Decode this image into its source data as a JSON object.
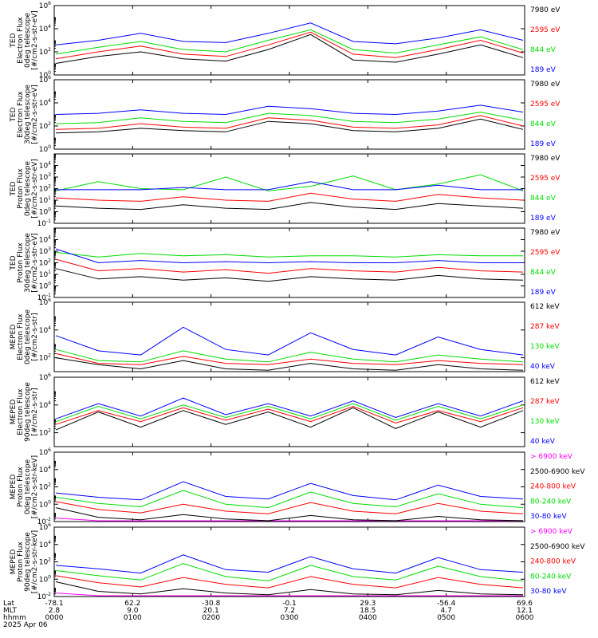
{
  "chart_data": [
    {
      "type": "line",
      "ylabel": [
        "TED",
        "Electron Flux",
        "0deg telescope",
        "[#/cm2-s-str-eV]"
      ],
      "yscale": "log",
      "ylim": [
        1,
        1000000
      ],
      "yticks": [
        {
          "label": "10",
          "exp": "0"
        },
        {
          "label": "10",
          "exp": "2"
        },
        {
          "label": "10",
          "exp": "4"
        },
        {
          "label": "10",
          "exp": "6"
        }
      ],
      "series": [
        {
          "name": "7980 eV",
          "color": "#000000",
          "values": [
            1.0,
            1.6,
            2.0,
            1.4,
            1.2,
            2.2,
            3.5,
            1.3,
            1.1,
            1.8,
            2.6,
            1.5
          ]
        },
        {
          "name": "2595 eV",
          "color": "#ff0000",
          "values": [
            1.4,
            2.0,
            2.5,
            1.8,
            1.6,
            2.6,
            3.7,
            1.8,
            1.5,
            2.2,
            3.0,
            1.9
          ]
        },
        {
          "name": "844 eV",
          "color": "#00dd00",
          "values": [
            1.8,
            2.4,
            2.9,
            2.2,
            2.0,
            3.0,
            3.9,
            2.2,
            1.9,
            2.6,
            3.3,
            2.2
          ]
        },
        {
          "name": "189 eV",
          "color": "#0000ff",
          "values": [
            2.6,
            3.0,
            3.6,
            2.9,
            2.8,
            3.6,
            4.5,
            2.9,
            2.7,
            3.2,
            3.9,
            3.0
          ]
        }
      ]
    },
    {
      "type": "line",
      "ylabel": [
        "TED",
        "Electron Flux",
        "30deg telescope",
        "[#/cm2-s-str-eV]"
      ],
      "yscale": "log",
      "ylim": [
        1,
        1000000
      ],
      "yticks": [
        {
          "label": "10",
          "exp": "0"
        },
        {
          "label": "10",
          "exp": "2"
        },
        {
          "label": "10",
          "exp": "4"
        },
        {
          "label": "10",
          "exp": "6"
        }
      ],
      "series": [
        {
          "name": "7980 eV",
          "color": "#000000",
          "values": [
            1.4,
            1.5,
            1.8,
            1.6,
            1.5,
            2.4,
            2.2,
            1.6,
            1.5,
            1.8,
            2.6,
            1.7
          ]
        },
        {
          "name": "2595 eV",
          "color": "#ff0000",
          "values": [
            1.7,
            1.8,
            2.2,
            1.9,
            1.8,
            2.7,
            2.5,
            1.9,
            1.8,
            2.1,
            2.9,
            2.0
          ]
        },
        {
          "name": "844 eV",
          "color": "#00dd00",
          "values": [
            2.2,
            2.3,
            2.7,
            2.4,
            2.3,
            3.1,
            2.9,
            2.4,
            2.3,
            2.6,
            3.2,
            2.5
          ]
        },
        {
          "name": "189 eV",
          "color": "#0000ff",
          "values": [
            3.0,
            3.1,
            3.4,
            3.1,
            3.0,
            3.7,
            3.5,
            3.1,
            3.0,
            3.3,
            3.8,
            3.2
          ]
        }
      ]
    },
    {
      "type": "line",
      "ylabel": [
        "TED",
        "Proton Flux",
        "0deg telescope",
        "[#/cm2-s-str-eV]"
      ],
      "yscale": "log",
      "ylim": [
        0.1,
        100000
      ],
      "yticks": [
        {
          "label": "10",
          "exp": "-1"
        },
        {
          "label": "10",
          "exp": "0"
        },
        {
          "label": "10",
          "exp": "1"
        },
        {
          "label": "10",
          "exp": "2"
        },
        {
          "label": "10",
          "exp": "3"
        },
        {
          "label": "10",
          "exp": "4"
        }
      ],
      "series": [
        {
          "name": "7980 eV",
          "color": "#000000",
          "values": [
            0.5,
            0.3,
            0.2,
            0.6,
            0.3,
            0.2,
            0.8,
            0.4,
            0.2,
            0.7,
            0.5,
            0.3
          ]
        },
        {
          "name": "2595 eV",
          "color": "#ff0000",
          "values": [
            1.2,
            1.0,
            0.9,
            1.3,
            1.0,
            0.9,
            1.6,
            1.1,
            0.9,
            1.5,
            1.2,
            1.0
          ]
        },
        {
          "name": "844 eV",
          "color": "#00dd00",
          "values": [
            1.8,
            2.6,
            2.0,
            1.9,
            3.0,
            1.8,
            2.2,
            3.1,
            1.9,
            2.4,
            3.2,
            1.8
          ]
        },
        {
          "name": "189 eV",
          "color": "#0000ff",
          "values": [
            1.9,
            1.9,
            1.9,
            2.1,
            1.9,
            1.9,
            2.6,
            1.9,
            1.9,
            2.3,
            1.9,
            1.9
          ]
        }
      ]
    },
    {
      "type": "line",
      "ylabel": [
        "TED",
        "Proton Flux",
        "30deg telescope",
        "[#/cm2-s-str-eV]"
      ],
      "yscale": "log",
      "ylim": [
        0.1,
        100000
      ],
      "yticks": [
        {
          "label": "10",
          "exp": "-1"
        },
        {
          "label": "10",
          "exp": "0"
        },
        {
          "label": "10",
          "exp": "1"
        },
        {
          "label": "10",
          "exp": "2"
        },
        {
          "label": "10",
          "exp": "3"
        },
        {
          "label": "10",
          "exp": "4"
        }
      ],
      "series": [
        {
          "name": "7980 eV",
          "color": "#000000",
          "values": [
            1.5,
            0.6,
            0.8,
            0.5,
            0.7,
            0.4,
            0.8,
            0.6,
            0.5,
            0.9,
            0.6,
            0.5
          ]
        },
        {
          "name": "2595 eV",
          "color": "#ff0000",
          "values": [
            2.3,
            1.3,
            1.5,
            1.2,
            1.4,
            1.1,
            1.5,
            1.3,
            1.2,
            1.6,
            1.3,
            1.2
          ]
        },
        {
          "name": "844 eV",
          "color": "#00dd00",
          "values": [
            2.9,
            2.5,
            2.8,
            2.6,
            2.7,
            2.5,
            2.6,
            2.6,
            2.5,
            2.7,
            2.6,
            2.6
          ]
        },
        {
          "name": "189 eV",
          "color": "#0000ff",
          "values": [
            3.2,
            2.0,
            2.2,
            2.0,
            2.1,
            2.0,
            2.1,
            2.0,
            2.0,
            2.2,
            2.0,
            2.0
          ]
        }
      ]
    },
    {
      "type": "line",
      "ylabel": [
        "MEPED",
        "Electron Flux",
        "0deg telescope",
        "[#/cm2-s-str]"
      ],
      "yscale": "log",
      "ylim": [
        10,
        1000000
      ],
      "yticks": [
        {
          "label": "10",
          "exp": "2"
        },
        {
          "label": "10",
          "exp": "4"
        },
        {
          "label": "10",
          "exp": "6"
        }
      ],
      "series": [
        {
          "name": "612 keV",
          "color": "#000000",
          "values": [
            2.0,
            1.5,
            1.2,
            1.8,
            1.2,
            1.1,
            1.6,
            1.2,
            1.1,
            1.5,
            1.2,
            1.1
          ]
        },
        {
          "name": "287 keV",
          "color": "#ff0000",
          "values": [
            2.3,
            1.6,
            1.5,
            2.1,
            1.6,
            1.5,
            1.9,
            1.6,
            1.5,
            1.8,
            1.6,
            1.5
          ]
        },
        {
          "name": "130 keV",
          "color": "#00dd00",
          "values": [
            2.6,
            1.8,
            1.7,
            2.5,
            1.9,
            1.7,
            2.4,
            1.9,
            1.7,
            2.2,
            1.9,
            1.7
          ]
        },
        {
          "name": "40 keV",
          "color": "#0000ff",
          "values": [
            3.6,
            2.5,
            2.2,
            4.2,
            2.6,
            2.2,
            3.8,
            2.6,
            2.2,
            3.5,
            2.6,
            2.2
          ]
        }
      ]
    },
    {
      "type": "line",
      "ylabel": [
        "MEPED",
        "Electron Flux",
        "90deg telescope",
        "[#/cm2-s-str]"
      ],
      "yscale": "log",
      "ylim": [
        10,
        1000000
      ],
      "yticks": [
        {
          "label": "10",
          "exp": "2"
        },
        {
          "label": "10",
          "exp": "4"
        },
        {
          "label": "10",
          "exp": "6"
        }
      ],
      "series": [
        {
          "name": "612 keV",
          "color": "#000000",
          "values": [
            2.2,
            3.5,
            2.4,
            3.6,
            2.6,
            3.5,
            2.4,
            3.8,
            2.3,
            3.5,
            2.4,
            3.6
          ]
        },
        {
          "name": "287 keV",
          "color": "#ff0000",
          "values": [
            2.6,
            3.6,
            2.8,
            3.8,
            2.9,
            3.7,
            2.8,
            3.9,
            2.7,
            3.6,
            2.8,
            3.8
          ]
        },
        {
          "name": "130 keV",
          "color": "#00dd00",
          "values": [
            2.8,
            3.9,
            3.0,
            4.0,
            3.1,
            3.9,
            3.0,
            4.1,
            2.9,
            3.9,
            3.0,
            4.0
          ]
        },
        {
          "name": "40 keV",
          "color": "#0000ff",
          "values": [
            3.0,
            4.1,
            3.2,
            4.5,
            3.3,
            4.1,
            3.2,
            4.3,
            3.1,
            4.1,
            3.2,
            4.3
          ]
        }
      ]
    },
    {
      "type": "line",
      "ylabel": [
        "MEPED",
        "Proton Flux",
        "0deg telescope",
        "[#/cm2-s-str-keV]"
      ],
      "yscale": "log",
      "ylim": [
        0.01,
        1000000
      ],
      "yticks": [
        {
          "label": "10",
          "exp": "-2"
        },
        {
          "label": "10",
          "exp": "0"
        },
        {
          "label": "10",
          "exp": "2"
        },
        {
          "label": "10",
          "exp": "4"
        },
        {
          "label": "10",
          "exp": "6"
        }
      ],
      "series": [
        {
          "name": "> 6900 keV",
          "color": "#ff00ff",
          "values": [
            -1.6,
            -2,
            -2,
            -2,
            -2,
            -2,
            -2,
            -2,
            -2,
            -2,
            -2,
            -2
          ]
        },
        {
          "name": "2500-6900 keV",
          "color": "#000000",
          "values": [
            -0.4,
            -1.5,
            -1.8,
            -1.2,
            -1.7,
            -1.9,
            -1.3,
            -1.8,
            -1.9,
            -1.4,
            -1.8,
            -1.9
          ]
        },
        {
          "name": "240-800 keV",
          "color": "#ff0000",
          "values": [
            0.3,
            -0.6,
            -1.0,
            0.0,
            -0.8,
            -1.1,
            0.2,
            -0.8,
            -1.1,
            0.1,
            -0.8,
            -1.1
          ]
        },
        {
          "name": "80-240 keV",
          "color": "#00dd00",
          "values": [
            0.8,
            0.1,
            -0.3,
            1.6,
            0.0,
            -0.4,
            1.4,
            0.1,
            -0.3,
            1.2,
            0.0,
            -0.4
          ]
        },
        {
          "name": "30-80 keV",
          "color": "#0000ff",
          "values": [
            1.3,
            0.8,
            0.5,
            2.6,
            0.9,
            0.6,
            2.4,
            1.0,
            0.5,
            2.2,
            0.9,
            0.6
          ]
        }
      ]
    },
    {
      "type": "line",
      "ylabel": [
        "MEPED",
        "Proton Flux",
        "90deg telescope",
        "[#/cm2-s-str-keV]"
      ],
      "yscale": "log",
      "ylim": [
        0.01,
        1000000
      ],
      "yticks": [
        {
          "label": "10",
          "exp": "-2"
        },
        {
          "label": "10",
          "exp": "0"
        },
        {
          "label": "10",
          "exp": "2"
        },
        {
          "label": "10",
          "exp": "4"
        },
        {
          "label": "10",
          "exp": "6"
        }
      ],
      "series": [
        {
          "name": "> 6900 keV",
          "color": "#ff00ff",
          "values": [
            -1.6,
            -2,
            -2,
            -2,
            -2,
            -2,
            -2,
            -2,
            -2,
            -2,
            -2,
            -2
          ]
        },
        {
          "name": "2500-6900 keV",
          "color": "#000000",
          "values": [
            -0.3,
            -1.4,
            -1.7,
            -1.1,
            -1.6,
            -1.8,
            -1.2,
            -1.7,
            -1.8,
            -1.3,
            -1.7,
            -1.8
          ]
        },
        {
          "name": "240-800 keV",
          "color": "#ff0000",
          "values": [
            0.4,
            -0.4,
            -0.9,
            0.2,
            -0.6,
            -1.0,
            0.3,
            -0.6,
            -1.0,
            0.2,
            -0.6,
            -1.0
          ]
        },
        {
          "name": "80-240 keV",
          "color": "#00dd00",
          "values": [
            1.0,
            0.4,
            -0.1,
            1.8,
            0.3,
            -0.2,
            1.6,
            0.3,
            -0.1,
            1.5,
            0.3,
            -0.2
          ]
        },
        {
          "name": "30-80 keV",
          "color": "#0000ff",
          "values": [
            1.6,
            1.2,
            0.7,
            2.8,
            1.1,
            0.8,
            2.6,
            1.2,
            0.7,
            2.5,
            1.1,
            0.8
          ]
        }
      ]
    }
  ],
  "footer": {
    "rows": [
      {
        "label": "Lat",
        "values": [
          "-78.1",
          "62.2",
          "-30.8",
          "-0.1",
          "29.3",
          "-56.4",
          "69.6"
        ]
      },
      {
        "label": "MLT",
        "values": [
          "2.8",
          "9.0",
          "20.1",
          "7.2",
          "18.5",
          "4.7",
          "12.1"
        ]
      },
      {
        "label": "hhmm",
        "values": [
          "0000",
          "0100",
          "0200",
          "0300",
          "0400",
          "0500",
          "0600"
        ]
      }
    ],
    "date": "2025 Apr 06"
  }
}
